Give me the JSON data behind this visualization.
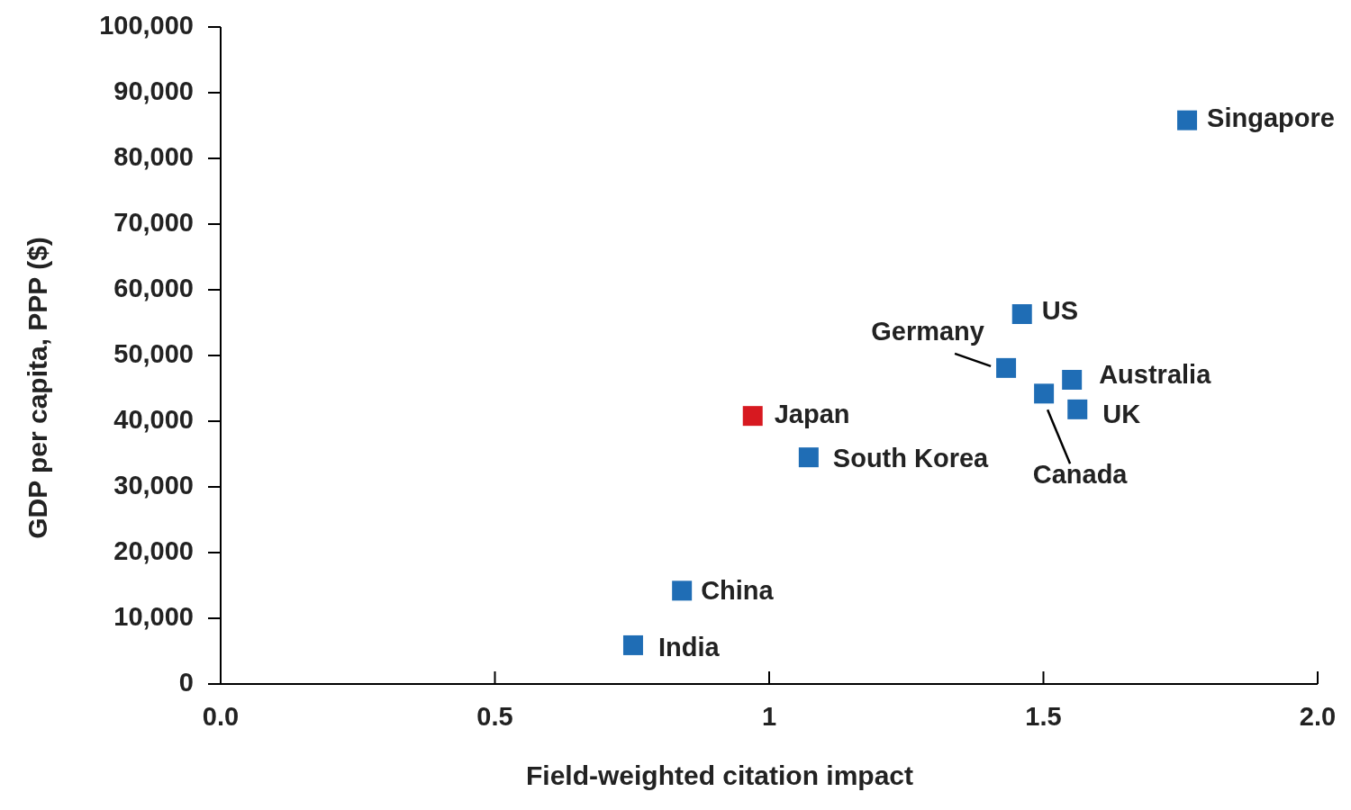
{
  "chart_data": {
    "type": "scatter",
    "xlabel": "Field-weighted citation impact",
    "ylabel": "GDP per capita, PPP ($)",
    "xlim": [
      0,
      2
    ],
    "xticks": [
      {
        "value": 0,
        "label": "0.0"
      },
      0.5,
      1,
      1.5,
      {
        "value": 2,
        "label": "2.0"
      }
    ],
    "ylim": [
      0,
      100000
    ],
    "yticks": [
      0,
      {
        "value": 10000,
        "label": "10,000"
      },
      {
        "value": 20000,
        "label": "20,000"
      },
      {
        "value": 30000,
        "label": "30,000"
      },
      {
        "value": 40000,
        "label": "40,000"
      },
      {
        "value": 50000,
        "label": "50,000"
      },
      {
        "value": 60000,
        "label": "60,000"
      },
      {
        "value": 70000,
        "label": "70,000"
      },
      {
        "value": 80000,
        "label": "80,000"
      },
      {
        "value": 90000,
        "label": "90,000"
      },
      {
        "value": 100000,
        "label": "100,000"
      }
    ],
    "grid": false,
    "marker": "square",
    "series": [
      {
        "x": [
          1.762,
          1.461,
          1.432,
          1.552,
          1.501,
          1.562,
          0.97,
          1.072,
          0.841,
          0.752
        ],
        "values": [
          85800,
          56300,
          48100,
          46300,
          44200,
          41800,
          40800,
          34500,
          14200,
          5900
        ],
        "colors": [
          "#1f6db5",
          "#1f6db5",
          "#1f6db5",
          "#1f6db5",
          "#1f6db5",
          "#1f6db5",
          "#d71920",
          "#1f6db5",
          "#1f6db5",
          "#1f6db5"
        ]
      }
    ],
    "annotations": [
      {
        "text": "Singapore",
        "x": 1.762,
        "y": 85800
      },
      {
        "text": "US",
        "x": 1.461,
        "y": 56300
      },
      {
        "text": "Germany",
        "x": 1.432,
        "y": 48100
      },
      {
        "text": "Australia",
        "x": 1.552,
        "y": 46300
      },
      {
        "text": "Canada",
        "x": 1.501,
        "y": 44200
      },
      {
        "text": "UK",
        "x": 1.562,
        "y": 41800
      },
      {
        "text": "Japan",
        "x": 0.97,
        "y": 40800
      },
      {
        "text": "South Korea",
        "x": 1.072,
        "y": 34500
      },
      {
        "text": "China",
        "x": 0.841,
        "y": 14200
      },
      {
        "text": "India",
        "x": 0.752,
        "y": 5900
      }
    ]
  }
}
